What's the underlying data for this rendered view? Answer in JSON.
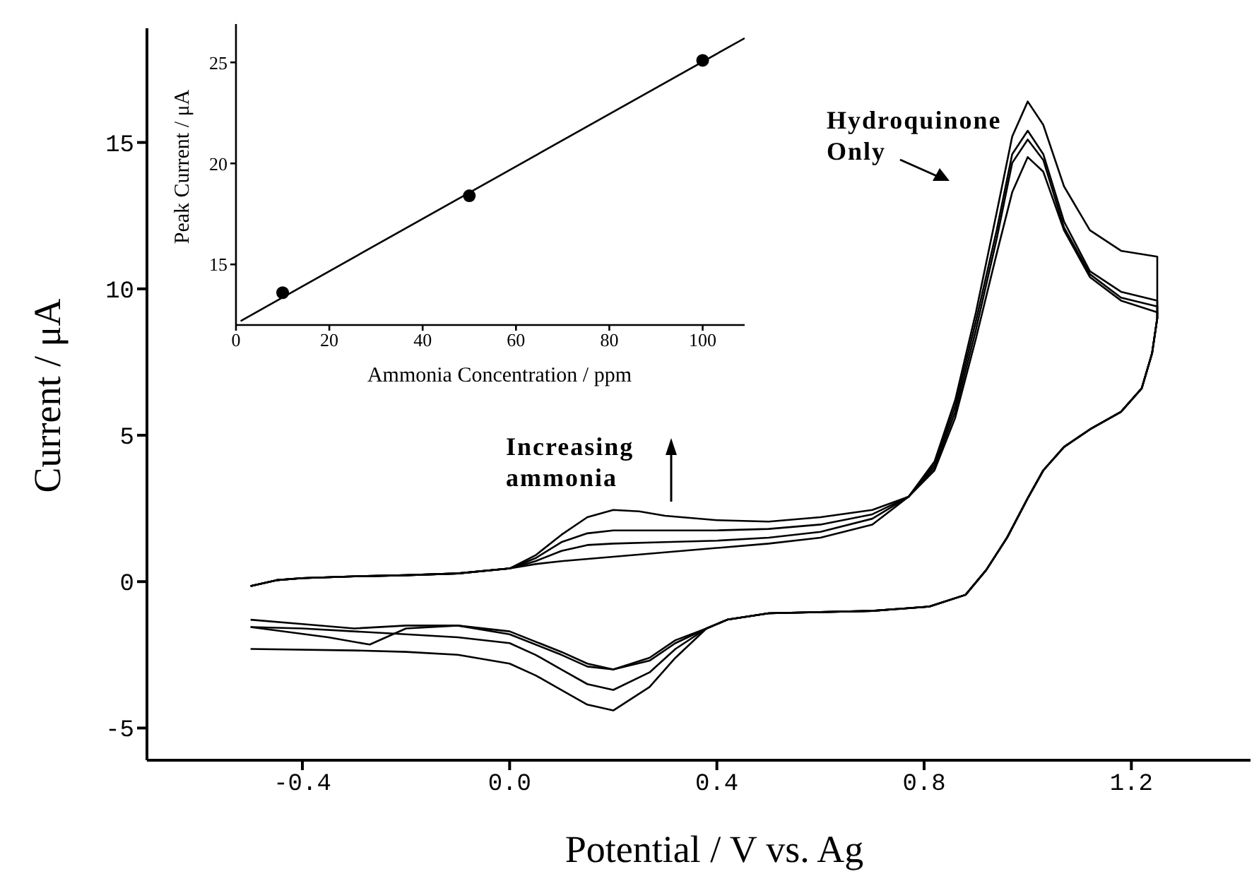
{
  "chart_data": [
    {
      "type": "line",
      "xlabel": "Potential / V vs. Ag",
      "ylabel": "Current / μA",
      "xlim": [
        -0.7,
        1.43
      ],
      "xticks": [
        -0.4,
        {
          "value": 0,
          "label": "0.0"
        },
        0.4,
        0.8,
        1.2
      ],
      "ylim": [
        -6.1,
        18.9
      ],
      "yticks": [
        -5,
        0,
        5,
        10,
        15
      ],
      "annotations": [
        "Hydroquinone Only",
        "Increasing ammonia"
      ],
      "series": [
        {
          "color": "#000000",
          "x": [
            -0.5,
            -0.45,
            -0.4,
            -0.3,
            -0.2,
            -0.1,
            0.0,
            0.05,
            0.1,
            0.15,
            0.2,
            0.25,
            0.3,
            0.4,
            0.5,
            0.6,
            0.7,
            0.77,
            0.82,
            0.86,
            0.9,
            0.94,
            0.97,
            1.0,
            1.03,
            1.07,
            1.12,
            1.18,
            1.25,
            1.25,
            1.24,
            1.22,
            1.18,
            1.12,
            1.07,
            1.03,
            1.0,
            0.96,
            0.92,
            0.88,
            0.81,
            0.7,
            0.5,
            0.42,
            0.38,
            0.32,
            0.27,
            0.2,
            0.15,
            0.1,
            0.05,
            0.0,
            -0.1,
            -0.2,
            -0.3,
            -0.5
          ],
          "values": [
            -0.15,
            0.05,
            0.12,
            0.18,
            0.22,
            0.28,
            0.45,
            0.9,
            1.6,
            2.2,
            2.45,
            2.4,
            2.25,
            2.1,
            2.05,
            2.2,
            2.45,
            2.9,
            4.1,
            6.2,
            9.2,
            12.6,
            15.2,
            16.4,
            15.6,
            13.5,
            12.0,
            11.3,
            11.1,
            9.0,
            7.8,
            6.6,
            5.8,
            5.2,
            4.6,
            3.8,
            2.85,
            1.5,
            0.4,
            -0.45,
            -0.85,
            -1.0,
            -1.08,
            -1.3,
            -1.6,
            -2.6,
            -3.6,
            -4.4,
            -4.2,
            -3.7,
            -3.2,
            -2.8,
            -2.5,
            -2.4,
            -2.35,
            -2.3
          ]
        },
        {
          "color": "#000000",
          "x": [
            -0.5,
            -0.45,
            -0.4,
            -0.3,
            -0.2,
            -0.1,
            0.0,
            0.05,
            0.1,
            0.15,
            0.2,
            0.3,
            0.4,
            0.5,
            0.6,
            0.7,
            0.77,
            0.82,
            0.86,
            0.9,
            0.94,
            0.97,
            1.0,
            1.03,
            1.07,
            1.12,
            1.18,
            1.25,
            1.25,
            1.24,
            1.22,
            1.18,
            1.12,
            1.07,
            1.03,
            1.0,
            0.96,
            0.92,
            0.88,
            0.81,
            0.7,
            0.5,
            0.42,
            0.38,
            0.32,
            0.27,
            0.2,
            0.15,
            0.1,
            0.05,
            0.0,
            -0.1,
            -0.2,
            -0.3,
            -0.4,
            -0.5
          ],
          "values": [
            -0.15,
            0.05,
            0.12,
            0.18,
            0.22,
            0.28,
            0.45,
            0.8,
            1.35,
            1.65,
            1.75,
            1.75,
            1.75,
            1.8,
            1.95,
            2.3,
            2.9,
            4.0,
            6.0,
            8.9,
            12.0,
            14.6,
            15.4,
            14.6,
            12.3,
            10.6,
            9.9,
            9.6,
            9.0,
            7.8,
            6.6,
            5.8,
            5.2,
            4.6,
            3.8,
            2.85,
            1.5,
            0.4,
            -0.45,
            -0.85,
            -1.0,
            -1.08,
            -1.3,
            -1.6,
            -2.3,
            -3.1,
            -3.7,
            -3.5,
            -3.0,
            -2.5,
            -2.1,
            -1.9,
            -1.8,
            -1.7,
            -1.6,
            -1.55
          ]
        },
        {
          "color": "#000000",
          "x": [
            -0.5,
            -0.45,
            -0.4,
            -0.3,
            -0.2,
            -0.1,
            0.0,
            0.05,
            0.1,
            0.15,
            0.2,
            0.3,
            0.4,
            0.5,
            0.6,
            0.7,
            0.77,
            0.82,
            0.86,
            0.9,
            0.94,
            0.97,
            1.0,
            1.03,
            1.07,
            1.12,
            1.18,
            1.25,
            1.25,
            1.24,
            1.22,
            1.18,
            1.12,
            1.07,
            1.03,
            1.0,
            0.96,
            0.92,
            0.88,
            0.81,
            0.7,
            0.5,
            0.42,
            0.38,
            0.32,
            0.27,
            0.2,
            0.15,
            0.1,
            0.0,
            -0.1,
            -0.2,
            -0.27,
            -0.35,
            -0.5
          ],
          "values": [
            -0.15,
            0.05,
            0.12,
            0.18,
            0.22,
            0.28,
            0.45,
            0.7,
            1.05,
            1.25,
            1.3,
            1.35,
            1.4,
            1.5,
            1.7,
            2.15,
            2.9,
            3.9,
            5.8,
            8.6,
            11.7,
            14.3,
            15.1,
            14.4,
            12.1,
            10.5,
            9.7,
            9.4,
            9.0,
            7.8,
            6.6,
            5.8,
            5.2,
            4.6,
            3.8,
            2.85,
            1.5,
            0.4,
            -0.45,
            -0.85,
            -1.0,
            -1.08,
            -1.3,
            -1.6,
            -2.1,
            -2.7,
            -3.0,
            -2.9,
            -2.5,
            -1.8,
            -1.5,
            -1.6,
            -2.15,
            -1.9,
            -1.55
          ]
        },
        {
          "color": "#000000",
          "x": [
            -0.5,
            -0.45,
            -0.4,
            -0.3,
            -0.2,
            -0.1,
            0.0,
            0.05,
            0.1,
            0.2,
            0.3,
            0.4,
            0.5,
            0.6,
            0.7,
            0.77,
            0.82,
            0.86,
            0.9,
            0.94,
            0.97,
            1.0,
            1.03,
            1.07,
            1.12,
            1.18,
            1.25,
            1.25,
            1.24,
            1.22,
            1.18,
            1.12,
            1.07,
            1.03,
            1.0,
            0.96,
            0.92,
            0.88,
            0.81,
            0.7,
            0.5,
            0.42,
            0.38,
            0.32,
            0.27,
            0.2,
            0.15,
            0.1,
            0.0,
            -0.1,
            -0.2,
            -0.3,
            -0.4,
            -0.5
          ],
          "values": [
            -0.15,
            0.05,
            0.12,
            0.18,
            0.22,
            0.28,
            0.45,
            0.6,
            0.7,
            0.85,
            1.0,
            1.15,
            1.3,
            1.5,
            1.95,
            2.9,
            3.8,
            5.6,
            8.3,
            11.2,
            13.3,
            14.5,
            14.0,
            12.0,
            10.4,
            9.6,
            9.2,
            9.0,
            7.8,
            6.6,
            5.8,
            5.2,
            4.6,
            3.8,
            2.85,
            1.5,
            0.4,
            -0.45,
            -0.85,
            -1.0,
            -1.08,
            -1.3,
            -1.6,
            -2.0,
            -2.6,
            -3.0,
            -2.8,
            -2.4,
            -1.7,
            -1.5,
            -1.5,
            -1.6,
            -1.45,
            -1.3
          ]
        }
      ]
    },
    {
      "type": "scatter",
      "xlabel": "Ammonia Concentration / ppm",
      "ylabel": "Peak Current / μA",
      "xlim": [
        0,
        109
      ],
      "xticks": [
        0,
        20,
        40,
        60,
        80,
        100
      ],
      "ylim": [
        12,
        26.9
      ],
      "yticks": [
        15,
        20,
        25
      ],
      "marker": "circle",
      "series": [
        {
          "color": "#000000",
          "x": [
            10,
            50,
            100
          ],
          "values": [
            13.6,
            18.4,
            25.1
          ]
        },
        {
          "type": "line",
          "color": "#000000",
          "marker": "none",
          "x": [
            1,
            109
          ],
          "values": [
            12.2,
            26.2
          ]
        }
      ]
    }
  ]
}
